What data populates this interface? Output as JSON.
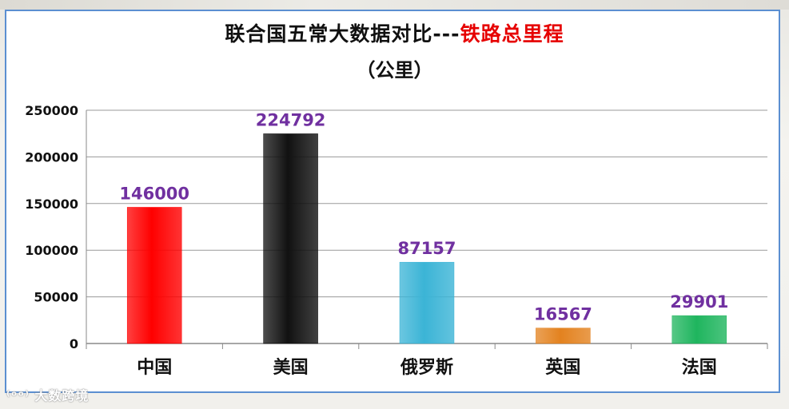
{
  "chart_data": {
    "type": "bar",
    "title_prefix": "联合国五常大数据对比---",
    "title_highlight": "铁路总里程",
    "subtitle": "（公里）",
    "categories": [
      "中国",
      "美国",
      "俄罗斯",
      "英国",
      "法国"
    ],
    "values": [
      146000,
      224792,
      87157,
      16567,
      29901
    ],
    "data_labels": [
      "146000",
      "224792",
      "87157",
      "16567",
      "29901"
    ],
    "bar_colors": [
      "#ff0000",
      "#111111",
      "#3bb4d6",
      "#e3821f",
      "#1fb55e"
    ],
    "data_label_color": "#7030a0",
    "yticks": [
      "0",
      "50000",
      "100000",
      "150000",
      "200000",
      "250000"
    ],
    "ylim": [
      0,
      250000
    ],
    "grid": true,
    "legend": "none"
  },
  "watermark": "大数跨境",
  "colors": {
    "frame_border": "#5b8fd1",
    "title_highlight": "#e60000"
  }
}
